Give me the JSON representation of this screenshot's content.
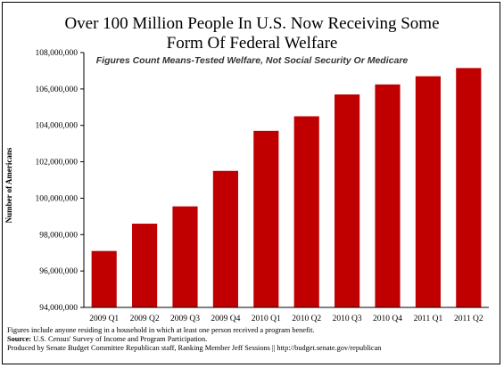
{
  "footer": {
    "note": "Figures include anyone residing in a household in which at least one person received a program benefit.",
    "source_label": "Source:",
    "source_text": " U.S. Census' Survey of Income and Program Participation.",
    "produced_by": "Produced by Senate Budget Committee Republican staff, Ranking Member Jeff Sessions || http://budget.senate.gov/republican"
  },
  "colors": {
    "bar": "#c00000",
    "axis": "#000000"
  },
  "chart_data": {
    "type": "bar",
    "title": "Over 100 Million People In U.S. Now Receiving Some Form Of Federal Welfare",
    "title_line1": "Over 100 Million People In U.S. Now Receiving Some",
    "title_line2": "Form Of Federal Welfare",
    "subtitle": "Figures Count Means-Tested Welfare, Not Social Security Or Medicare",
    "xlabel": "",
    "ylabel": "Number of Americans",
    "categories": [
      "2009 Q1",
      "2009 Q2",
      "2009 Q3",
      "2009 Q4",
      "2010 Q1",
      "2010 Q2",
      "2010 Q3",
      "2010 Q4",
      "2011 Q1",
      "2011 Q2"
    ],
    "values": [
      97100000,
      98600000,
      99550000,
      101500000,
      103700000,
      104500000,
      105700000,
      106250000,
      106700000,
      107150000
    ],
    "ylim": [
      94000000,
      108000000
    ],
    "yticks": [
      94000000,
      96000000,
      98000000,
      100000000,
      102000000,
      104000000,
      106000000,
      108000000
    ],
    "ytick_labels": [
      "94,000,000",
      "96,000,000",
      "98,000,000",
      "100,000,000",
      "102,000,000",
      "104,000,000",
      "106,000,000",
      "108,000,000"
    ],
    "grid": false,
    "legend": "none"
  }
}
